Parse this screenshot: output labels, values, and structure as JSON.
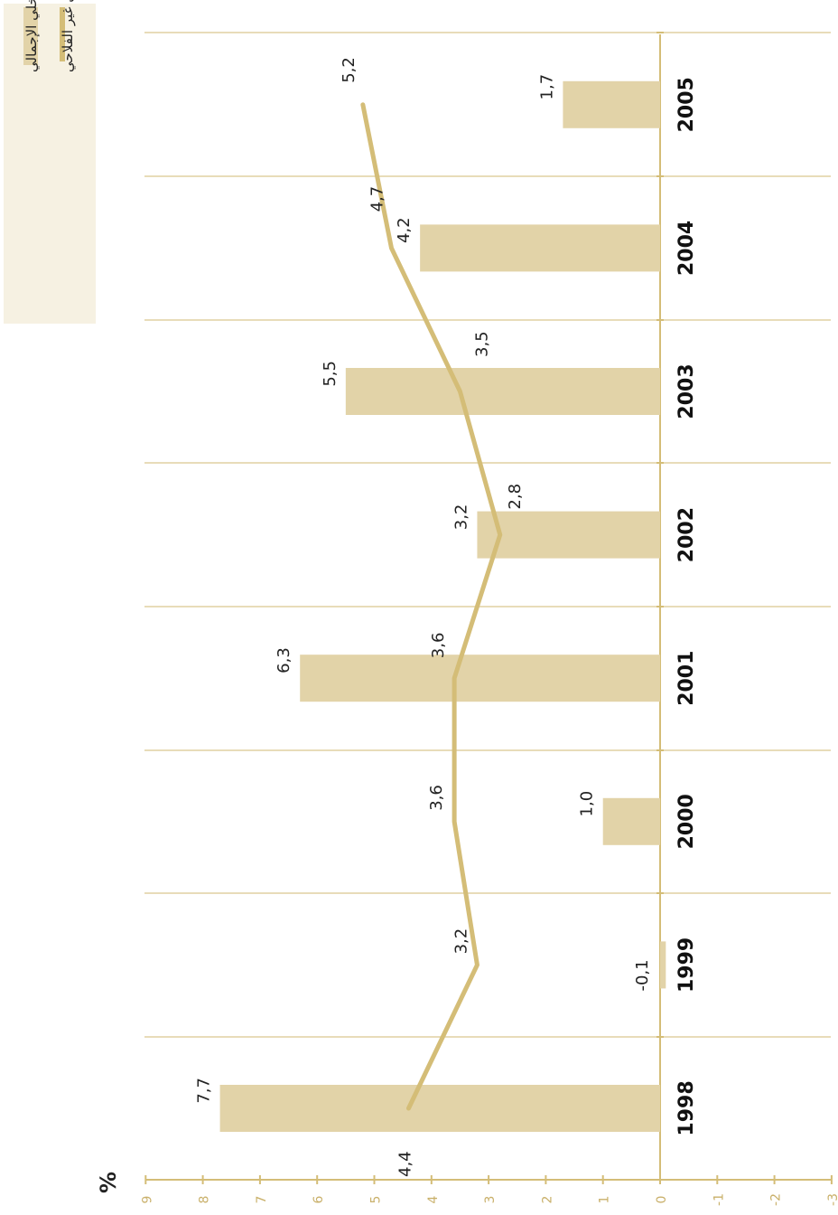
{
  "chart_data": {
    "type": "bar",
    "orientation": "rotated-90",
    "unit_label": "%",
    "categories": [
      "1998",
      "1999",
      "2000",
      "2001",
      "2002",
      "2003",
      "2004",
      "2005"
    ],
    "series": [
      {
        "name": "الناتج الداخلي الإجمالي",
        "kind": "bar",
        "values": [
          7.7,
          -0.1,
          1.0,
          6.3,
          3.2,
          5.5,
          4.2,
          1.7
        ],
        "labels": [
          "7,7",
          "-0,1",
          "1,0",
          "6,3",
          "3,2",
          "5,5",
          "4,2",
          "1,7"
        ]
      },
      {
        "name": "الناتج الداخلي الإجمالي غير الفلاحي",
        "kind": "line",
        "values": [
          4.4,
          3.2,
          3.6,
          3.6,
          2.8,
          3.5,
          4.7,
          5.2
        ],
        "labels": [
          "4,4",
          "3,2",
          "3,6",
          "3,6",
          "2,8",
          "3,5",
          "4,7",
          "5,2"
        ]
      }
    ],
    "value_axis": {
      "min": -3,
      "max": 9,
      "ticks": [
        9,
        8,
        7,
        6,
        5,
        4,
        3,
        2,
        1,
        0,
        -1,
        -2,
        -3
      ]
    },
    "colors": {
      "bar": "#e2d3a8",
      "line": "#d4bd77",
      "axis": "#d4bd77",
      "grid": "#d9c78f",
      "tick_label": "#c9b06a",
      "legend_bg": "#f6f1e2",
      "text": "#222222"
    },
    "legend_position": "top-left",
    "grid": true
  }
}
